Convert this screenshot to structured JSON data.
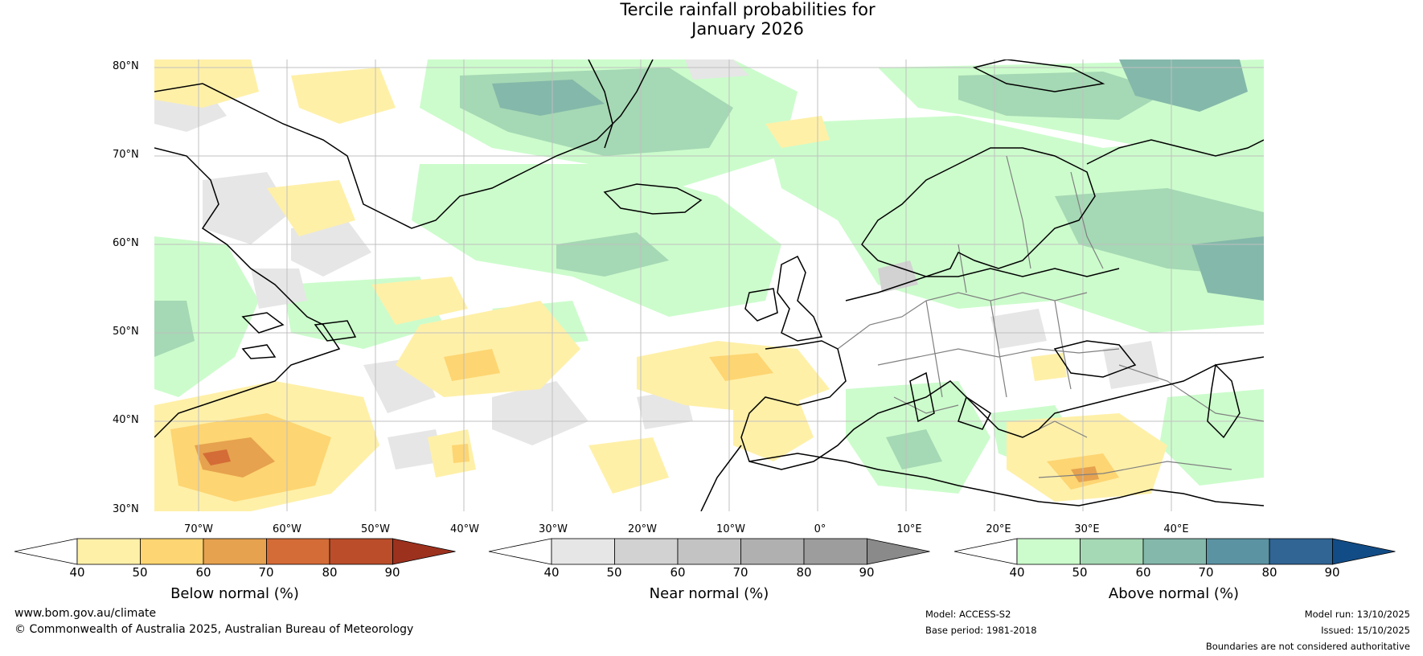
{
  "title": {
    "line1": "Tercile rainfall probabilities for",
    "line2": "January 2026"
  },
  "map": {
    "lat_labels": [
      "80°N",
      "70°N",
      "60°N",
      "50°N",
      "40°N",
      "30°N"
    ],
    "lon_labels": [
      "70°W",
      "60°W",
      "50°W",
      "40°W",
      "30°W",
      "20°W",
      "10°W",
      "0°",
      "10°E",
      "20°E",
      "30°E",
      "40°E"
    ],
    "gridline_color": "#c0c0c0",
    "coastline_color": "#000000",
    "border_color": "#808080"
  },
  "legends": [
    {
      "title": "Below normal (%)",
      "ticks": [
        "40",
        "50",
        "60",
        "70",
        "80",
        "90"
      ],
      "colors": [
        "#fff0a8",
        "#fdd572",
        "#e6a24f",
        "#d46c37",
        "#bb4d2a",
        "#9c311e"
      ]
    },
    {
      "title": "Near normal (%)",
      "ticks": [
        "40",
        "50",
        "60",
        "70",
        "80",
        "90"
      ],
      "colors": [
        "#e6e6e6",
        "#d2d2d2",
        "#c3c3c3",
        "#b0b0b0",
        "#9d9d9d",
        "#8a8a8a"
      ]
    },
    {
      "title": "Above normal (%)",
      "ticks": [
        "40",
        "50",
        "60",
        "70",
        "80",
        "90"
      ],
      "colors": [
        "#ccfccc",
        "#a5d8b4",
        "#84b8aa",
        "#5b93a2",
        "#306594",
        "#124c86"
      ]
    }
  ],
  "footer": {
    "url": "www.bom.gov.au/climate",
    "copyright": "© Commonwealth of Australia 2025, Australian Bureau of Meteorology",
    "model": "Model: ACCESS-S2",
    "base_period": "Base period: 1981-2018",
    "model_run": "Model run: 13/10/2025",
    "issued": "Issued: 15/10/2025",
    "disclaimer": "Boundaries are not considered authoritative"
  }
}
